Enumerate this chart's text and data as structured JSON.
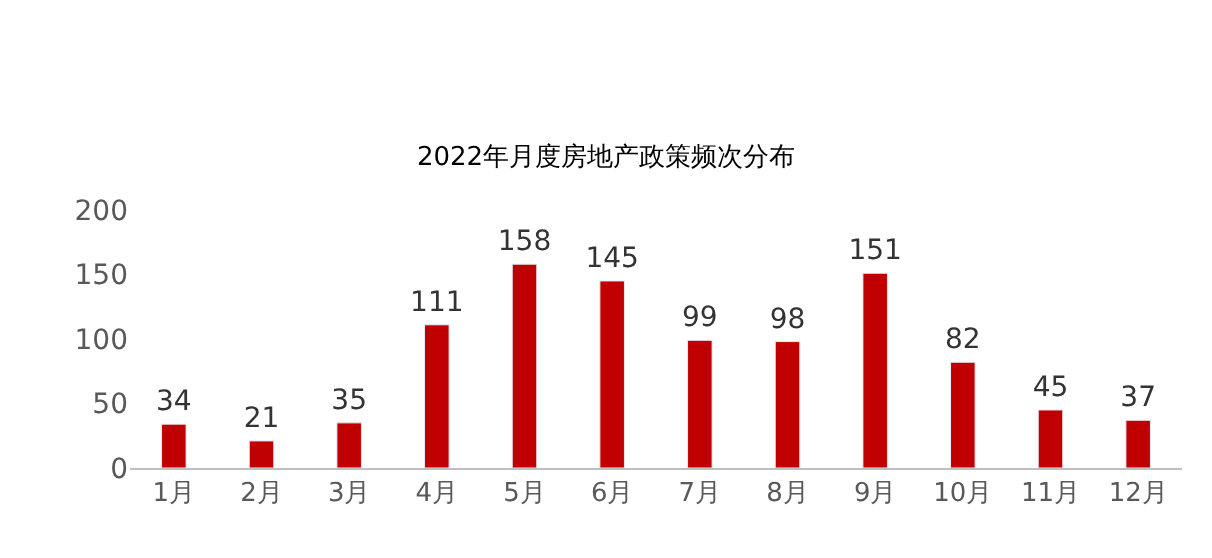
{
  "chart_data": {
    "type": "bar",
    "title": "2022年月度房地产政策频次分布",
    "categories": [
      "1月",
      "2月",
      "3月",
      "4月",
      "5月",
      "6月",
      "7月",
      "8月",
      "9月",
      "10月",
      "11月",
      "12月"
    ],
    "values": [
      34,
      21,
      35,
      111,
      158,
      145,
      99,
      98,
      151,
      82,
      45,
      37
    ],
    "color": "#c00000",
    "ylim": [
      0,
      200
    ],
    "yticks": [
      0,
      50,
      100,
      150,
      200
    ],
    "data_labels": true
  }
}
